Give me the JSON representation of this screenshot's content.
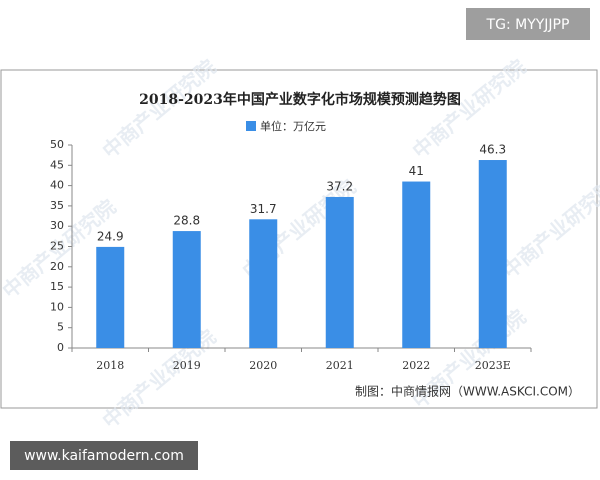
{
  "chart_data": {
    "type": "bar",
    "title": "2018-2023年中国产业数字化市场规模预测趋势图",
    "categories": [
      "2018",
      "2019",
      "2020",
      "2021",
      "2022",
      "2023E"
    ],
    "series": [
      {
        "name": "单位：万亿元",
        "color": "#3a8ee6",
        "values": [
          24.9,
          28.8,
          31.7,
          37.2,
          41,
          46.3
        ]
      }
    ],
    "ylim": [
      0,
      50
    ],
    "yticks": [
      0,
      5,
      10,
      15,
      20,
      25,
      30,
      35,
      40,
      45,
      50
    ],
    "grid": false,
    "source": "制图：中商情报网（WWW.ASKCI.COM）",
    "watermark": "中商产业研究院"
  },
  "overlays": {
    "tag": "TG: MYYJJPP",
    "url": "www.kaifamodern.com"
  }
}
